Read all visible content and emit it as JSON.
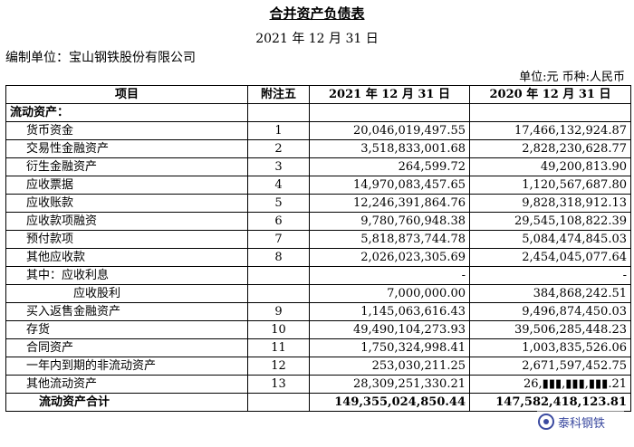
{
  "title": "合并资产负债表",
  "date": "2021 年 12 月 31 日",
  "compiler": "编制单位：宝山钢铁股份有限公司",
  "unit": "单位:元  币种:人民币",
  "headers": [
    "项目",
    "附注五",
    "2021 年 12 月 31 日",
    "2020 年 12 月 31 日"
  ],
  "rows": [
    {
      "item": "流动资产：",
      "note": "",
      "v2021": "",
      "v2020": ""
    },
    {
      "item": "货币资金",
      "note": "1",
      "v2021": "20,046,019,497.55",
      "v2020": "17,466,132,924.87"
    },
    {
      "item": "交易性金融资产",
      "note": "2",
      "v2021": "3,518,833,001.68",
      "v2020": "2,828,230,628.77"
    },
    {
      "item": "衍生金融资产",
      "note": "3",
      "v2021": "264,599.72",
      "v2020": "49,200,813.90"
    },
    {
      "item": "应收票据",
      "note": "4",
      "v2021": "14,970,083,457.65",
      "v2020": "1,120,567,687.80"
    },
    {
      "item": "应收账款",
      "note": "5",
      "v2021": "12,246,391,864.76",
      "v2020": "9,828,318,912.13"
    },
    {
      "item": "应收款项融资",
      "note": "6",
      "v2021": "9,780,760,948.38",
      "v2020": "29,545,108,822.39"
    },
    {
      "item": "预付款项",
      "note": "7",
      "v2021": "5,818,873,744.78",
      "v2020": "5,084,474,845.03"
    },
    {
      "item": "其他应收款",
      "note": "8",
      "v2021": "2,026,023,305.69",
      "v2020": "2,454,045,077.64"
    },
    {
      "item": "其中：应收利息",
      "note": "",
      "v2021": "-",
      "v2020": "-"
    },
    {
      "item": "应收股利",
      "note": "",
      "v2021": "7,000,000.00",
      "v2020": "384,868,242.51"
    },
    {
      "item": "买入返售金融资产",
      "note": "9",
      "v2021": "1,145,063,616.43",
      "v2020": "9,496,874,450.03"
    },
    {
      "item": "存货",
      "note": "10",
      "v2021": "49,490,104,273.93",
      "v2020": "39,506,285,448.23"
    },
    {
      "item": "合同资产",
      "note": "11",
      "v2021": "1,750,324,998.41",
      "v2020": "1,003,835,526.06"
    },
    {
      "item": "一年内到期的非流动资产",
      "note": "12",
      "v2021": "253,030,211.25",
      "v2020": "2,671,597,452.75"
    },
    {
      "item": "其他流动资产",
      "note": "13",
      "v2021": "28,309,251,330.21",
      "v2020": "26,▮▮▮,▮▮▮,▮▮▮.21"
    },
    {
      "item": "流动资产合计",
      "note": "",
      "v2021": "149,355,024,850.44",
      "v2020": "147,582,418,123.81"
    }
  ],
  "watermark": "泰科钢铁"
}
